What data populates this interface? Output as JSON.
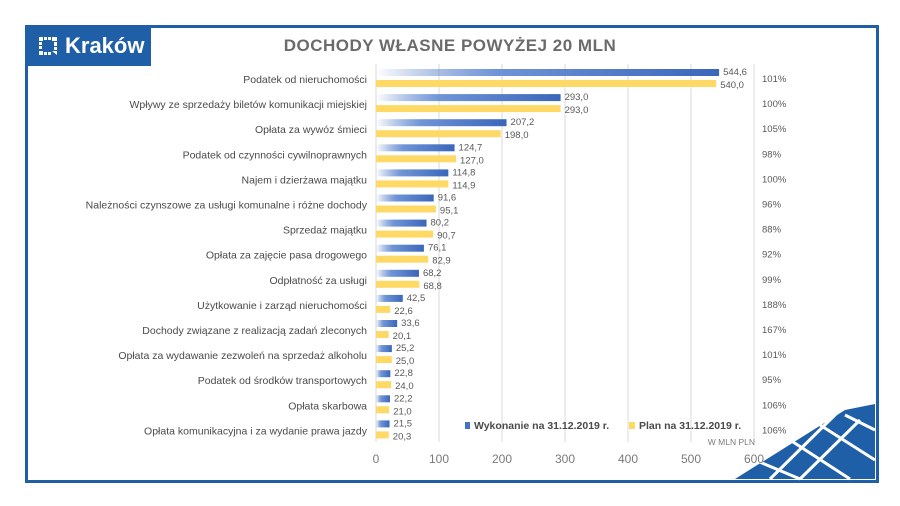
{
  "logo": {
    "text": "Kraków"
  },
  "colors": {
    "brand": "#1f5fa8",
    "executed": "#4472c4",
    "plan": "#ffd966"
  },
  "chart_data": {
    "type": "bar",
    "orientation": "horizontal",
    "title": "DOCHODY WŁASNE POWYŻEJ 20 MLN",
    "unit_label": "W MLN PLN",
    "xlim": [
      0,
      600
    ],
    "xticks": [
      "0",
      "100",
      "200",
      "300",
      "400",
      "500",
      "600"
    ],
    "grid": true,
    "legend_position": "bottom-right",
    "categories": [
      "Podatek od nieruchomości",
      "Wpływy ze sprzedaży biletów komunikacji miejskiej",
      "Opłata za wywóz śmieci",
      "Podatek od czynności cywilnoprawnych",
      "Najem i dzierżawa majątku",
      "Należności czynszowe za usługi komunalne i różne dochody",
      "Sprzedaż majątku",
      "Opłata za zajęcie pasa drogowego",
      "Odpłatność za usługi",
      "Użytkowanie i zarząd nieruchomości",
      "Dochody związane z realizacją zadań zleconych",
      "Opłata za wydawanie zezwoleń na sprzedaż alkoholu",
      "Podatek od środków transportowych",
      "Opłata skarbowa",
      "Opłata komunikacyjna i za wydanie prawa jazdy"
    ],
    "series": [
      {
        "name": "Wykonanie na 31.12.2019 r.",
        "values": [
          544.6,
          293.0,
          207.2,
          124.7,
          114.8,
          91.6,
          80.2,
          76.1,
          68.2,
          42.5,
          33.6,
          25.2,
          22.8,
          22.2,
          21.5
        ],
        "labels": [
          "544,6",
          "293,0",
          "207,2",
          "124,7",
          "114,8",
          "91,6",
          "80,2",
          "76,1",
          "68,2",
          "42,5",
          "33,6",
          "25,2",
          "22,8",
          "22,2",
          "21,5"
        ]
      },
      {
        "name": "Plan na 31.12.2019 r.",
        "values": [
          540.0,
          293.0,
          198.0,
          127.0,
          114.9,
          95.1,
          90.7,
          82.9,
          68.8,
          22.6,
          20.1,
          25.0,
          24.0,
          21.0,
          20.3
        ],
        "labels": [
          "540,0",
          "293,0",
          "198,0",
          "127,0",
          "114,9",
          "95,1",
          "90,7",
          "82,9",
          "68,8",
          "22,6",
          "20,1",
          "25,0",
          "24,0",
          "21,0",
          "20,3"
        ]
      }
    ],
    "percent_labels": [
      "101%",
      "100%",
      "105%",
      "98%",
      "100%",
      "96%",
      "88%",
      "92%",
      "99%",
      "188%",
      "167%",
      "101%",
      "95%",
      "106%",
      "106%"
    ]
  }
}
